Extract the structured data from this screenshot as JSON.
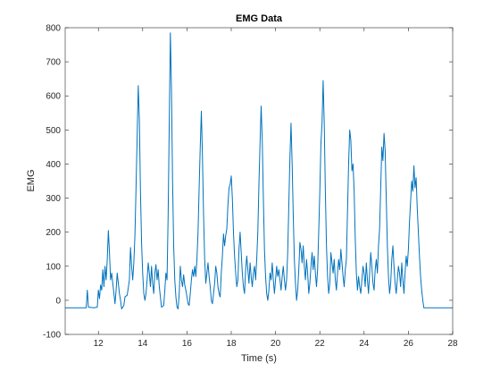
{
  "chart_data": {
    "type": "line",
    "title": "EMG Data",
    "xlabel": "Time (s)",
    "ylabel": "EMG",
    "xlim": [
      10.5,
      28
    ],
    "ylim": [
      -100,
      800
    ],
    "xticks": [
      12,
      14,
      16,
      18,
      20,
      22,
      24,
      26,
      28
    ],
    "yticks": [
      -100,
      0,
      100,
      200,
      300,
      400,
      500,
      600,
      700,
      800
    ],
    "grid": false,
    "box": true,
    "line_color": "#0072BD",
    "series": [
      {
        "points": [
          [
            10.5,
            -22
          ],
          [
            11.2,
            -22
          ],
          [
            11.45,
            -22
          ],
          [
            11.5,
            30
          ],
          [
            11.55,
            -20
          ],
          [
            11.8,
            -22
          ],
          [
            11.95,
            -20
          ],
          [
            12.0,
            30
          ],
          [
            12.05,
            5
          ],
          [
            12.1,
            45
          ],
          [
            12.15,
            30
          ],
          [
            12.2,
            90
          ],
          [
            12.25,
            40
          ],
          [
            12.3,
            100
          ],
          [
            12.35,
            60
          ],
          [
            12.4,
            120
          ],
          [
            12.45,
            205
          ],
          [
            12.5,
            140
          ],
          [
            12.55,
            60
          ],
          [
            12.6,
            80
          ],
          [
            12.65,
            50
          ],
          [
            12.7,
            20
          ],
          [
            12.75,
            -10
          ],
          [
            12.8,
            30
          ],
          [
            12.85,
            80
          ],
          [
            12.9,
            50
          ],
          [
            12.95,
            20
          ],
          [
            13.0,
            0
          ],
          [
            13.05,
            -25
          ],
          [
            13.15,
            -15
          ],
          [
            13.2,
            10
          ],
          [
            13.3,
            15
          ],
          [
            13.4,
            60
          ],
          [
            13.45,
            155
          ],
          [
            13.5,
            100
          ],
          [
            13.55,
            60
          ],
          [
            13.6,
            110
          ],
          [
            13.65,
            190
          ],
          [
            13.7,
            330
          ],
          [
            13.75,
            480
          ],
          [
            13.8,
            630
          ],
          [
            13.85,
            530
          ],
          [
            13.9,
            320
          ],
          [
            13.95,
            170
          ],
          [
            14.0,
            80
          ],
          [
            14.05,
            20
          ],
          [
            14.1,
            0
          ],
          [
            14.15,
            20
          ],
          [
            14.2,
            60
          ],
          [
            14.25,
            110
          ],
          [
            14.3,
            80
          ],
          [
            14.35,
            40
          ],
          [
            14.4,
            100
          ],
          [
            14.45,
            50
          ],
          [
            14.5,
            20
          ],
          [
            14.55,
            80
          ],
          [
            14.6,
            105
          ],
          [
            14.65,
            60
          ],
          [
            14.7,
            90
          ],
          [
            14.75,
            40
          ],
          [
            14.8,
            10
          ],
          [
            14.85,
            -20
          ],
          [
            14.95,
            -15
          ],
          [
            15.0,
            30
          ],
          [
            15.05,
            80
          ],
          [
            15.1,
            60
          ],
          [
            15.15,
            250
          ],
          [
            15.2,
            520
          ],
          [
            15.25,
            785
          ],
          [
            15.3,
            620
          ],
          [
            15.35,
            350
          ],
          [
            15.4,
            160
          ],
          [
            15.45,
            60
          ],
          [
            15.5,
            10
          ],
          [
            15.55,
            -20
          ],
          [
            15.6,
            -25
          ],
          [
            15.65,
            20
          ],
          [
            15.7,
            100
          ],
          [
            15.75,
            60
          ],
          [
            15.8,
            40
          ],
          [
            15.85,
            75
          ],
          [
            15.9,
            45
          ],
          [
            15.95,
            30
          ],
          [
            16.0,
            10
          ],
          [
            16.05,
            -10
          ],
          [
            16.1,
            -15
          ],
          [
            16.15,
            20
          ],
          [
            16.2,
            60
          ],
          [
            16.25,
            90
          ],
          [
            16.3,
            70
          ],
          [
            16.35,
            100
          ],
          [
            16.4,
            70
          ],
          [
            16.45,
            120
          ],
          [
            16.5,
            200
          ],
          [
            16.55,
            330
          ],
          [
            16.6,
            450
          ],
          [
            16.65,
            555
          ],
          [
            16.7,
            420
          ],
          [
            16.75,
            250
          ],
          [
            16.8,
            120
          ],
          [
            16.85,
            50
          ],
          [
            16.9,
            80
          ],
          [
            16.95,
            110
          ],
          [
            17.0,
            70
          ],
          [
            17.05,
            40
          ],
          [
            17.1,
            0
          ],
          [
            17.15,
            -10
          ],
          [
            17.2,
            20
          ],
          [
            17.25,
            50
          ],
          [
            17.3,
            100
          ],
          [
            17.35,
            80
          ],
          [
            17.4,
            40
          ],
          [
            17.45,
            20
          ],
          [
            17.5,
            10
          ],
          [
            17.55,
            80
          ],
          [
            17.6,
            130
          ],
          [
            17.65,
            195
          ],
          [
            17.7,
            160
          ],
          [
            17.75,
            190
          ],
          [
            17.8,
            210
          ],
          [
            17.85,
            280
          ],
          [
            17.9,
            330
          ],
          [
            17.95,
            340
          ],
          [
            18.0,
            365
          ],
          [
            18.05,
            300
          ],
          [
            18.1,
            200
          ],
          [
            18.15,
            130
          ],
          [
            18.2,
            80
          ],
          [
            18.25,
            40
          ],
          [
            18.3,
            60
          ],
          [
            18.35,
            150
          ],
          [
            18.4,
            200
          ],
          [
            18.45,
            140
          ],
          [
            18.5,
            80
          ],
          [
            18.55,
            40
          ],
          [
            18.6,
            20
          ],
          [
            18.65,
            90
          ],
          [
            18.7,
            130
          ],
          [
            18.75,
            90
          ],
          [
            18.8,
            50
          ],
          [
            18.85,
            110
          ],
          [
            18.9,
            70
          ],
          [
            18.95,
            40
          ],
          [
            19.0,
            80
          ],
          [
            19.05,
            100
          ],
          [
            19.1,
            60
          ],
          [
            19.15,
            120
          ],
          [
            19.2,
            200
          ],
          [
            19.25,
            340
          ],
          [
            19.3,
            460
          ],
          [
            19.35,
            570
          ],
          [
            19.4,
            470
          ],
          [
            19.45,
            300
          ],
          [
            19.5,
            150
          ],
          [
            19.55,
            70
          ],
          [
            19.6,
            20
          ],
          [
            19.65,
            0
          ],
          [
            19.7,
            30
          ],
          [
            19.75,
            80
          ],
          [
            19.8,
            60
          ],
          [
            19.85,
            110
          ],
          [
            19.9,
            60
          ],
          [
            19.95,
            20
          ],
          [
            20.0,
            60
          ],
          [
            20.05,
            100
          ],
          [
            20.1,
            70
          ],
          [
            20.15,
            90
          ],
          [
            20.2,
            60
          ],
          [
            20.25,
            30
          ],
          [
            20.3,
            70
          ],
          [
            20.35,
            100
          ],
          [
            20.4,
            60
          ],
          [
            20.45,
            30
          ],
          [
            20.5,
            60
          ],
          [
            20.55,
            140
          ],
          [
            20.6,
            280
          ],
          [
            20.65,
            420
          ],
          [
            20.7,
            520
          ],
          [
            20.75,
            400
          ],
          [
            20.8,
            250
          ],
          [
            20.85,
            120
          ],
          [
            20.9,
            50
          ],
          [
            20.95,
            0
          ],
          [
            21.0,
            30
          ],
          [
            21.05,
            90
          ],
          [
            21.1,
            170
          ],
          [
            21.15,
            150
          ],
          [
            21.2,
            110
          ],
          [
            21.25,
            160
          ],
          [
            21.3,
            100
          ],
          [
            21.35,
            60
          ],
          [
            21.4,
            120
          ],
          [
            21.45,
            80
          ],
          [
            21.5,
            20
          ],
          [
            21.55,
            50
          ],
          [
            21.6,
            100
          ],
          [
            21.65,
            140
          ],
          [
            21.7,
            90
          ],
          [
            21.75,
            130
          ],
          [
            21.8,
            80
          ],
          [
            21.85,
            40
          ],
          [
            21.9,
            90
          ],
          [
            21.95,
            200
          ],
          [
            22.0,
            320
          ],
          [
            22.05,
            460
          ],
          [
            22.1,
            520
          ],
          [
            22.15,
            645
          ],
          [
            22.2,
            520
          ],
          [
            22.25,
            320
          ],
          [
            22.3,
            160
          ],
          [
            22.35,
            70
          ],
          [
            22.4,
            20
          ],
          [
            22.45,
            50
          ],
          [
            22.5,
            140
          ],
          [
            22.55,
            110
          ],
          [
            22.6,
            80
          ],
          [
            22.65,
            120
          ],
          [
            22.7,
            60
          ],
          [
            22.75,
            30
          ],
          [
            22.8,
            80
          ],
          [
            22.85,
            120
          ],
          [
            22.9,
            90
          ],
          [
            22.95,
            150
          ],
          [
            23.0,
            110
          ],
          [
            23.05,
            70
          ],
          [
            23.1,
            40
          ],
          [
            23.15,
            90
          ],
          [
            23.2,
            120
          ],
          [
            23.25,
            260
          ],
          [
            23.3,
            400
          ],
          [
            23.35,
            500
          ],
          [
            23.4,
            470
          ],
          [
            23.45,
            380
          ],
          [
            23.5,
            400
          ],
          [
            23.55,
            320
          ],
          [
            23.6,
            180
          ],
          [
            23.65,
            80
          ],
          [
            23.7,
            30
          ],
          [
            23.75,
            70
          ],
          [
            23.8,
            40
          ],
          [
            23.85,
            20
          ],
          [
            23.9,
            60
          ],
          [
            23.95,
            100
          ],
          [
            24.0,
            80
          ],
          [
            24.05,
            40
          ],
          [
            24.1,
            110
          ],
          [
            24.15,
            60
          ],
          [
            24.2,
            20
          ],
          [
            24.25,
            80
          ],
          [
            24.3,
            140
          ],
          [
            24.35,
            100
          ],
          [
            24.4,
            50
          ],
          [
            24.45,
            30
          ],
          [
            24.5,
            90
          ],
          [
            24.55,
            120
          ],
          [
            24.6,
            80
          ],
          [
            24.65,
            160
          ],
          [
            24.7,
            210
          ],
          [
            24.75,
            330
          ],
          [
            24.8,
            450
          ],
          [
            24.85,
            410
          ],
          [
            24.9,
            490
          ],
          [
            24.95,
            440
          ],
          [
            25.0,
            300
          ],
          [
            25.05,
            160
          ],
          [
            25.1,
            70
          ],
          [
            25.15,
            20
          ],
          [
            25.2,
            50
          ],
          [
            25.25,
            120
          ],
          [
            25.3,
            160
          ],
          [
            25.35,
            100
          ],
          [
            25.4,
            50
          ],
          [
            25.45,
            20
          ],
          [
            25.5,
            60
          ],
          [
            25.55,
            100
          ],
          [
            25.6,
            80
          ],
          [
            25.65,
            40
          ],
          [
            25.7,
            110
          ],
          [
            25.75,
            60
          ],
          [
            25.8,
            20
          ],
          [
            25.85,
            80
          ],
          [
            25.9,
            130
          ],
          [
            25.95,
            100
          ],
          [
            26.0,
            150
          ],
          [
            26.05,
            230
          ],
          [
            26.1,
            290
          ],
          [
            26.15,
            350
          ],
          [
            26.2,
            320
          ],
          [
            26.25,
            395
          ],
          [
            26.3,
            330
          ],
          [
            26.35,
            360
          ],
          [
            26.4,
            270
          ],
          [
            26.45,
            200
          ],
          [
            26.5,
            130
          ],
          [
            26.55,
            70
          ],
          [
            26.6,
            30
          ],
          [
            26.65,
            0
          ],
          [
            26.7,
            -22
          ],
          [
            28.0,
            -22
          ]
        ]
      }
    ]
  }
}
